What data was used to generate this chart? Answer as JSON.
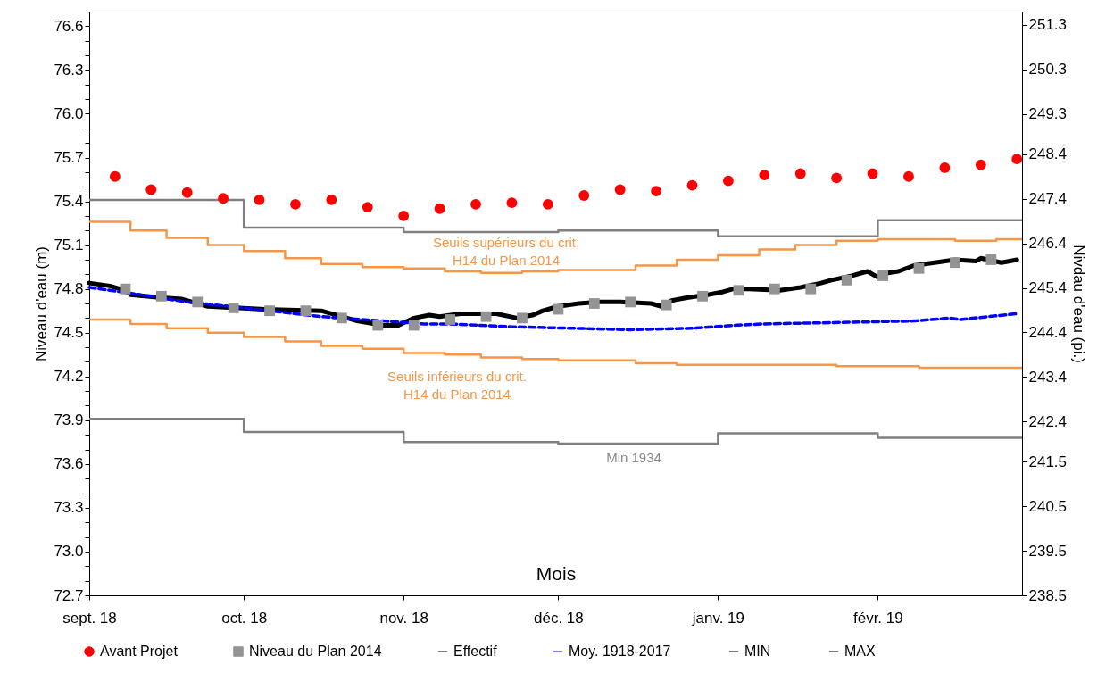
{
  "chart_data": {
    "type": "line",
    "xlabel": "Mois",
    "ylabel": "Niveau d'eau (m)",
    "y2label": "Nivdau d'eau (pi.)",
    "xlim": [
      "2018-09-01",
      "2019-03-01"
    ],
    "xticks": [
      {
        "value": "2018-09-01",
        "label": "sept. 18"
      },
      {
        "value": "2018-10-01",
        "label": "oct. 18"
      },
      {
        "value": "2018-11-01",
        "label": "nov. 18"
      },
      {
        "value": "2018-12-01",
        "label": "déc. 18"
      },
      {
        "value": "2019-01-01",
        "label": "janv. 19"
      },
      {
        "value": "2019-02-01",
        "label": "févr. 19"
      }
    ],
    "ylim": [
      72.7,
      76.7
    ],
    "yticks": [
      72.7,
      {
        "value": 72.8,
        "label": null
      },
      {
        "value": 72.9,
        "label": null
      },
      {
        "value": 73.0,
        "label": "73.0"
      },
      {
        "value": 73.1,
        "label": null
      },
      {
        "value": 73.2,
        "label": null
      },
      73.3,
      {
        "value": 73.4,
        "label": null
      },
      {
        "value": 73.5,
        "label": null
      },
      73.6,
      {
        "value": 73.7,
        "label": null
      },
      {
        "value": 73.8,
        "label": null
      },
      73.9,
      {
        "value": 74.0,
        "label": null
      },
      {
        "value": 74.1,
        "label": null
      },
      74.2,
      {
        "value": 74.3,
        "label": null
      },
      {
        "value": 74.4,
        "label": null
      },
      74.5,
      {
        "value": 74.6,
        "label": null
      },
      {
        "value": 74.7,
        "label": null
      },
      74.8,
      {
        "value": 74.9,
        "label": null
      },
      {
        "value": 75.0,
        "label": null
      },
      75.1,
      {
        "value": 75.2,
        "label": null
      },
      {
        "value": 75.3,
        "label": null
      },
      75.4,
      {
        "value": 75.5,
        "label": null
      },
      {
        "value": 75.6,
        "label": null
      },
      75.7,
      {
        "value": 75.8,
        "label": null
      },
      {
        "value": 75.9,
        "label": null
      },
      {
        "value": 76.0,
        "label": "76.0"
      },
      {
        "value": 76.1,
        "label": null
      },
      {
        "value": 76.2,
        "label": null
      },
      76.3,
      {
        "value": 76.4,
        "label": null
      },
      {
        "value": 76.5,
        "label": null
      },
      76.6
    ],
    "y2lim": [
      238.5,
      251.6
    ],
    "y2ticks": [
      238.5,
      239.5,
      240.5,
      241.5,
      242.4,
      243.4,
      244.4,
      245.4,
      246.4,
      247.4,
      248.4,
      249.3,
      250.3,
      251.3
    ],
    "legend": "bottom",
    "series": [
      {
        "type": "scatter",
        "name": "Avant Projet",
        "color": "#ff0000",
        "marker": "circle",
        "x": [
          "2018-09-06",
          "2018-09-13",
          "2018-09-20",
          "2018-09-27",
          "2018-10-04",
          "2018-10-11",
          "2018-10-18",
          "2018-10-25",
          "2018-11-01",
          "2018-11-08",
          "2018-11-15",
          "2018-11-22",
          "2018-11-29",
          "2018-12-06",
          "2018-12-13",
          "2018-12-20",
          "2018-12-27",
          "2019-01-03",
          "2019-01-10",
          "2019-01-17",
          "2019-01-24",
          "2019-01-31",
          "2019-02-07",
          "2019-02-14",
          "2019-02-21",
          "2019-02-28"
        ],
        "values": [
          75.57,
          75.48,
          75.46,
          75.42,
          75.41,
          75.38,
          75.41,
          75.36,
          75.3,
          75.35,
          75.38,
          75.39,
          75.38,
          75.44,
          75.48,
          75.47,
          75.51,
          75.54,
          75.58,
          75.59,
          75.56,
          75.59,
          75.57,
          75.63,
          75.65,
          75.69
        ]
      },
      {
        "type": "scatter",
        "name": "Niveau du Plan 2014",
        "color": "#939393",
        "marker": "square",
        "x": [
          "2018-09-08",
          "2018-09-15",
          "2018-09-22",
          "2018-09-29",
          "2018-10-06",
          "2018-10-13",
          "2018-10-20",
          "2018-10-27",
          "2018-11-03",
          "2018-11-10",
          "2018-11-17",
          "2018-11-24",
          "2018-12-01",
          "2018-12-08",
          "2018-12-15",
          "2018-12-22",
          "2018-12-29",
          "2019-01-05",
          "2019-01-12",
          "2019-01-19",
          "2019-01-26",
          "2019-02-02",
          "2019-02-09",
          "2019-02-16",
          "2019-02-23"
        ],
        "values": [
          74.8,
          74.75,
          74.71,
          74.67,
          74.65,
          74.65,
          74.6,
          74.55,
          74.55,
          74.59,
          74.61,
          74.6,
          74.66,
          74.7,
          74.71,
          74.69,
          74.75,
          74.79,
          74.8,
          74.8,
          74.86,
          74.89,
          74.94,
          74.98,
          75.0
        ]
      },
      {
        "name": "Effectif",
        "color": "#000000",
        "line_style": "solid",
        "x": [
          "2018-09-01",
          "2018-09-05",
          "2018-09-08",
          "2018-09-09",
          "2018-09-15",
          "2018-09-19",
          "2018-09-24",
          "2018-10-05",
          "2018-10-16",
          "2018-10-18",
          "2018-10-23",
          "2018-10-28",
          "2018-10-31",
          "2018-11-03",
          "2018-11-06",
          "2018-11-08",
          "2018-11-12",
          "2018-11-19",
          "2018-11-23",
          "2018-11-26",
          "2018-11-28",
          "2018-12-01",
          "2018-12-05",
          "2018-12-09",
          "2018-12-13",
          "2018-12-19",
          "2018-12-21",
          "2018-12-23",
          "2018-12-26",
          "2018-12-30",
          "2019-01-02",
          "2019-01-04",
          "2019-01-07",
          "2019-01-13",
          "2019-01-17",
          "2019-01-21",
          "2019-01-23",
          "2019-01-27",
          "2019-01-30",
          "2019-02-01",
          "2019-02-03",
          "2019-02-05",
          "2019-02-08",
          "2019-02-12",
          "2019-02-16",
          "2019-02-20",
          "2019-02-21",
          "2019-02-25",
          "2019-02-28"
        ],
        "values": [
          74.84,
          74.82,
          74.79,
          74.76,
          74.74,
          74.73,
          74.68,
          74.66,
          74.65,
          74.63,
          74.58,
          74.55,
          74.55,
          74.6,
          74.62,
          74.61,
          74.63,
          74.63,
          74.6,
          74.62,
          74.65,
          74.68,
          74.7,
          74.71,
          74.71,
          74.7,
          74.68,
          74.72,
          74.74,
          74.76,
          74.78,
          74.8,
          74.8,
          74.79,
          74.81,
          74.84,
          74.86,
          74.89,
          74.92,
          74.88,
          74.91,
          74.92,
          74.96,
          74.98,
          75.0,
          74.99,
          75.01,
          74.98,
          75.0
        ]
      },
      {
        "name": "Moy. 1918-2017",
        "color": "#0000ff",
        "line_style": "dashed",
        "x": [
          "2018-09-01",
          "2018-09-09",
          "2018-09-20",
          "2018-10-01",
          "2018-10-16",
          "2018-10-28",
          "2018-11-05",
          "2018-11-10",
          "2018-11-22",
          "2018-12-04",
          "2018-12-15",
          "2018-12-27",
          "2019-01-04",
          "2019-01-10",
          "2019-01-25",
          "2019-02-08",
          "2019-02-15",
          "2019-02-17",
          "2019-02-28"
        ],
        "values": [
          74.81,
          74.77,
          74.71,
          74.67,
          74.61,
          74.58,
          74.56,
          74.56,
          74.54,
          74.53,
          74.52,
          74.53,
          74.55,
          74.56,
          74.57,
          74.58,
          74.6,
          74.59,
          74.63
        ]
      },
      {
        "type": "step",
        "name": "MIN",
        "color": "#808080",
        "x": [
          "2018-09-01",
          "2018-10-01",
          "2018-11-01",
          "2018-12-01",
          "2019-01-01",
          "2019-02-01"
        ],
        "values": [
          73.91,
          73.82,
          73.75,
          73.74,
          73.81,
          73.78
        ]
      },
      {
        "type": "step",
        "name": "MAX",
        "color": "#808080",
        "x": [
          "2018-09-01",
          "2018-10-01",
          "2018-11-01",
          "2018-12-01",
          "2019-01-01",
          "2019-02-01"
        ],
        "values": [
          75.41,
          75.22,
          75.19,
          75.2,
          75.16,
          75.27
        ]
      },
      {
        "type": "step",
        "color": "#f79646",
        "x": [
          "2018-09-01",
          "2018-09-09",
          "2018-09-16",
          "2018-09-24",
          "2018-10-01",
          "2018-10-09",
          "2018-10-16",
          "2018-10-24",
          "2018-11-01",
          "2018-11-09",
          "2018-11-16",
          "2018-11-24",
          "2018-12-01",
          "2018-12-09",
          "2018-12-16",
          "2018-12-24",
          "2019-01-01",
          "2019-01-09",
          "2019-01-16",
          "2019-01-24",
          "2019-02-01",
          "2019-02-09",
          "2019-02-16",
          "2019-02-24"
        ],
        "values": [
          75.26,
          75.2,
          75.15,
          75.1,
          75.06,
          75.01,
          74.97,
          74.95,
          74.94,
          74.92,
          74.91,
          74.92,
          74.93,
          74.93,
          74.96,
          75.0,
          75.03,
          75.07,
          75.1,
          75.13,
          75.14,
          75.14,
          75.13,
          75.14
        ]
      },
      {
        "type": "step",
        "color": "#f79646",
        "x": [
          "2018-09-01",
          "2018-09-09",
          "2018-09-16",
          "2018-09-24",
          "2018-10-01",
          "2018-10-09",
          "2018-10-16",
          "2018-10-24",
          "2018-11-01",
          "2018-11-09",
          "2018-11-16",
          "2018-11-24",
          "2018-12-01",
          "2018-12-09",
          "2018-12-16",
          "2018-12-24",
          "2019-01-01",
          "2019-01-09",
          "2019-01-16",
          "2019-01-24",
          "2019-02-01",
          "2019-02-09",
          "2019-02-16",
          "2019-02-24"
        ],
        "values": [
          74.59,
          74.56,
          74.53,
          74.5,
          74.47,
          74.44,
          74.41,
          74.39,
          74.36,
          74.35,
          74.33,
          74.32,
          74.31,
          74.31,
          74.29,
          74.28,
          74.28,
          74.28,
          74.28,
          74.27,
          74.27,
          74.26,
          74.26,
          74.26
        ]
      }
    ],
    "annotations": [
      "Seuils supérieurs du crit.\nH14 du Plan 2014",
      "Seuils inférieurs du crit.\nH14 du Plan 2014",
      "Min 1934"
    ]
  }
}
